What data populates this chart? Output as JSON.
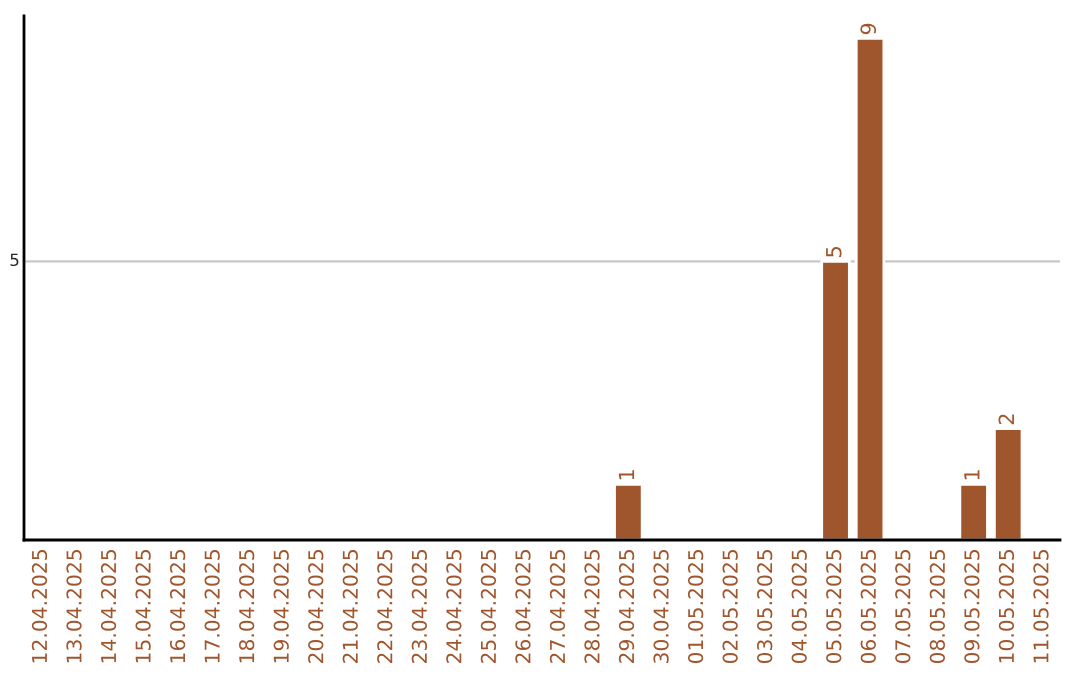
{
  "chart_data": {
    "type": "bar",
    "ylim": [
      0,
      9.4
    ],
    "categories": [
      "12.04.2025",
      "13.04.2025",
      "14.04.2025",
      "15.04.2025",
      "16.04.2025",
      "17.04.2025",
      "18.04.2025",
      "19.04.2025",
      "20.04.2025",
      "21.04.2025",
      "22.04.2025",
      "23.04.2025",
      "24.04.2025",
      "25.04.2025",
      "26.04.2025",
      "27.04.2025",
      "28.04.2025",
      "29.04.2025",
      "30.04.2025",
      "01.05.2025",
      "02.05.2025",
      "03.05.2025",
      "04.05.2025",
      "05.05.2025",
      "06.05.2025",
      "07.05.2025",
      "08.05.2025",
      "09.05.2025",
      "10.05.2025",
      "11.05.2025"
    ],
    "values": [
      null,
      null,
      null,
      null,
      null,
      null,
      null,
      null,
      null,
      null,
      null,
      null,
      null,
      null,
      null,
      null,
      null,
      1,
      null,
      null,
      null,
      null,
      null,
      5,
      9,
      null,
      null,
      1,
      2,
      null
    ],
    "value_labels": [
      null,
      null,
      null,
      null,
      null,
      null,
      null,
      null,
      null,
      null,
      null,
      null,
      null,
      null,
      null,
      null,
      null,
      "1",
      null,
      null,
      null,
      null,
      null,
      "5",
      "9",
      null,
      null,
      "1",
      "2",
      null
    ],
    "color": "#a0562c",
    "ref_lines": [
      {
        "axis": "y",
        "value": 5,
        "label": "5",
        "color": "#c8c8c8"
      }
    ]
  }
}
